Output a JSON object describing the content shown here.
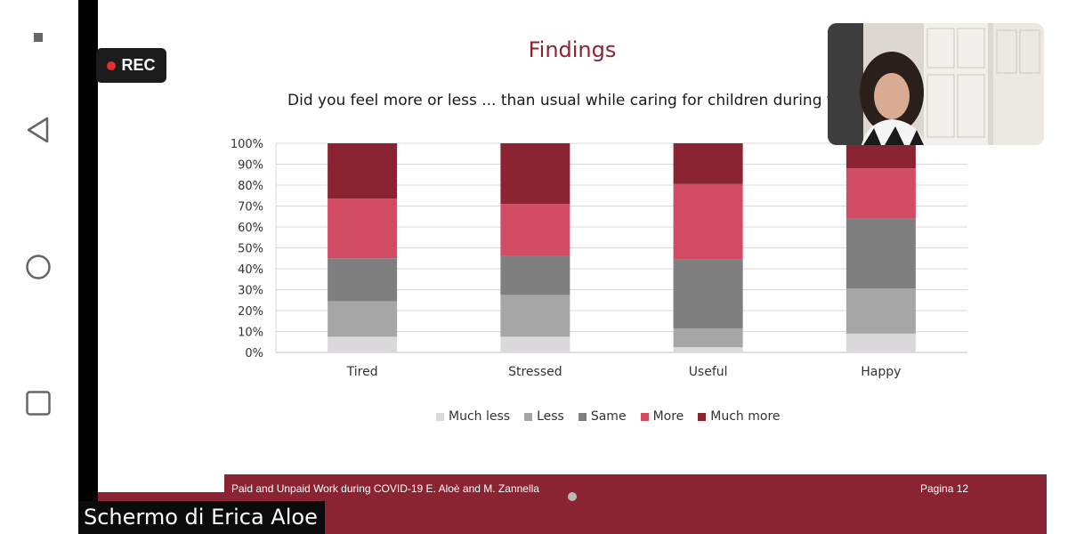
{
  "recording": {
    "label": "REC"
  },
  "slide": {
    "title": "Findings",
    "question": "Did you feel more or less ... than usual while caring for children during the",
    "footer": "Paid and Unpaid Work during COVID-19 E. Aloè and M. Zannella",
    "page_label": "Pagina 12"
  },
  "screen_share": {
    "label": "Schermo di Erica Aloe"
  },
  "nav": {
    "menu": "menu-icon",
    "back": "back-icon",
    "home": "home-icon",
    "recents": "recents-icon"
  },
  "colors": {
    "accent": "#8a2433",
    "much_less": "#dcd9dc",
    "less": "#a6a6a6",
    "same": "#7f7f7f",
    "more": "#d14c63",
    "much_more": "#8a2433"
  },
  "chart_data": {
    "type": "bar",
    "stacked": true,
    "percent": true,
    "categories": [
      "Tired",
      "Stressed",
      "Useful",
      "Happy"
    ],
    "series": [
      {
        "name": "Much less",
        "values": [
          7.5,
          7.5,
          2.5,
          9
        ]
      },
      {
        "name": "Less",
        "values": [
          17,
          20,
          9,
          21.5
        ]
      },
      {
        "name": "Same",
        "values": [
          20.5,
          18.5,
          33,
          33.5
        ]
      },
      {
        "name": "More",
        "values": [
          28.5,
          25,
          36,
          24
        ]
      },
      {
        "name": "Much more",
        "values": [
          26.5,
          29,
          19.5,
          12
        ]
      }
    ],
    "y_ticks": [
      "0%",
      "10%",
      "20%",
      "30%",
      "40%",
      "50%",
      "60%",
      "70%",
      "80%",
      "90%",
      "100%"
    ],
    "ylim": [
      0,
      100
    ],
    "grid": true,
    "legend": "bottom"
  }
}
